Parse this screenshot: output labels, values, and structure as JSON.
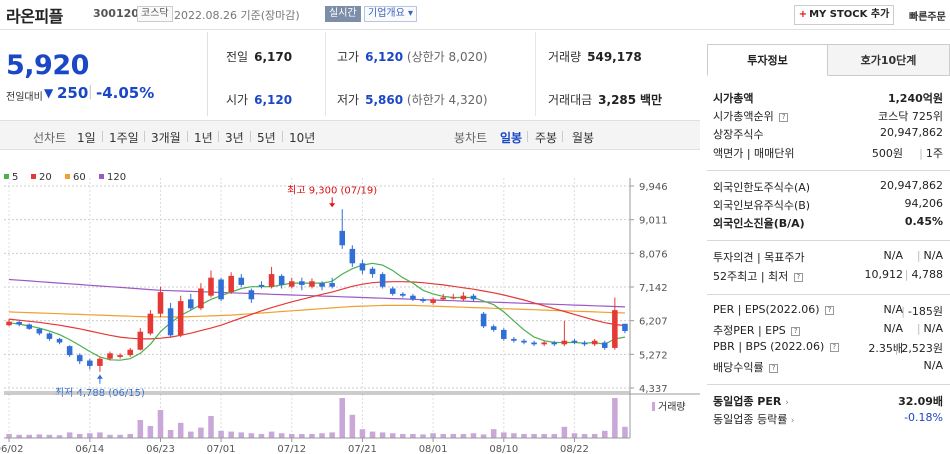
{
  "header": {
    "name": "라온피플",
    "code": "300120",
    "market": "코스닥",
    "date": "2022.08.26 기준(장마감)",
    "live": "실시간",
    "company_info": "기업개요",
    "mystock": "MY STOCK 추가",
    "quick_order": "빠른주문"
  },
  "price": {
    "current": "5,920",
    "diff_label": "전일대비",
    "diff_arrow": "▼",
    "diff": "250",
    "diff_pct": "-4.05%"
  },
  "stats": {
    "prev_label": "전일",
    "prev": "6,170",
    "high_label": "고가",
    "high": "6,120",
    "high_limit": "(상한가 8,020)",
    "volume_label": "거래량",
    "volume": "549,178",
    "open_label": "시가",
    "open": "6,120",
    "low_label": "저가",
    "low": "5,860",
    "low_limit": "(하한가 4,320)",
    "amount_label": "거래대금",
    "amount": "3,285",
    "amount_unit": "백만"
  },
  "toolbar": {
    "line_chart": "선차트",
    "periods": [
      "1일",
      "1주일",
      "3개월",
      "1년",
      "3년",
      "5년",
      "10년"
    ],
    "candle_chart": "봉차트",
    "candles": [
      "일봉",
      "주봉",
      "월봉"
    ]
  },
  "chart_data": {
    "type": "candlestick",
    "ma_legend": [
      {
        "name": "5",
        "color": "#4caf50"
      },
      {
        "name": "20",
        "color": "#e53935"
      },
      {
        "name": "60",
        "color": "#f0a030"
      },
      {
        "name": "120",
        "color": "#9b59c6"
      }
    ],
    "y_ticks": [
      "9,946",
      "9,011",
      "8,076",
      "7,142",
      "6,207",
      "5,272",
      "4,337"
    ],
    "y_tick_values": [
      9946,
      9011,
      8076,
      7142,
      6207,
      5272,
      4337
    ],
    "ylim": [
      4337,
      9946
    ],
    "x_labels": [
      "06/02",
      "06/14",
      "06/23",
      "07/01",
      "07/12",
      "07/21",
      "08/01",
      "08/10",
      "08/22"
    ],
    "x_label_index": [
      0,
      8,
      15,
      21,
      28,
      35,
      42,
      49,
      56
    ],
    "annot_high": "최고 9,300 (07/19)",
    "annot_high_value": 9300,
    "annot_high_index": 32,
    "annot_low": "최저 4,788 (06/15)",
    "annot_low_value": 4788,
    "annot_low_index": 9,
    "volume_label": "거래량",
    "candles": [
      {
        "o": 6080,
        "c": 6180,
        "h": 6250,
        "l": 6050
      },
      {
        "o": 6170,
        "c": 6100,
        "h": 6220,
        "l": 6050
      },
      {
        "o": 6100,
        "c": 5980,
        "h": 6130,
        "l": 5950
      },
      {
        "o": 5980,
        "c": 5850,
        "h": 6000,
        "l": 5800
      },
      {
        "o": 5850,
        "c": 5700,
        "h": 5880,
        "l": 5650
      },
      {
        "o": 5700,
        "c": 5600,
        "h": 5730,
        "l": 5550
      },
      {
        "o": 5500,
        "c": 5250,
        "h": 5520,
        "l": 5200
      },
      {
        "o": 5250,
        "c": 5080,
        "h": 5300,
        "l": 5000
      },
      {
        "o": 5100,
        "c": 4950,
        "h": 5150,
        "l": 4850
      },
      {
        "o": 4950,
        "c": 5150,
        "h": 5200,
        "l": 4788
      },
      {
        "o": 5150,
        "c": 5300,
        "h": 5350,
        "l": 5100
      },
      {
        "o": 5200,
        "c": 5250,
        "h": 5300,
        "l": 5150
      },
      {
        "o": 5250,
        "c": 5400,
        "h": 5450,
        "l": 5200
      },
      {
        "o": 5400,
        "c": 5900,
        "h": 6000,
        "l": 5380
      },
      {
        "o": 5850,
        "c": 6400,
        "h": 6500,
        "l": 5800
      },
      {
        "o": 6400,
        "c": 7000,
        "h": 7150,
        "l": 6300
      },
      {
        "o": 6550,
        "c": 5800,
        "h": 6700,
        "l": 5750
      },
      {
        "o": 5800,
        "c": 6750,
        "h": 6900,
        "l": 5750
      },
      {
        "o": 6800,
        "c": 6550,
        "h": 6950,
        "l": 6500
      },
      {
        "o": 6550,
        "c": 7100,
        "h": 7250,
        "l": 6500
      },
      {
        "o": 6900,
        "c": 7400,
        "h": 7600,
        "l": 6850
      },
      {
        "o": 7350,
        "c": 6800,
        "h": 7400,
        "l": 6750
      },
      {
        "o": 7000,
        "c": 7450,
        "h": 7550,
        "l": 6950
      },
      {
        "o": 7400,
        "c": 7200,
        "h": 7500,
        "l": 7150
      },
      {
        "o": 7050,
        "c": 6800,
        "h": 7100,
        "l": 6700
      },
      {
        "o": 7200,
        "c": 7150,
        "h": 7300,
        "l": 7100
      },
      {
        "o": 7150,
        "c": 7500,
        "h": 7700,
        "l": 7100
      },
      {
        "o": 7450,
        "c": 7200,
        "h": 7500,
        "l": 7100
      },
      {
        "o": 7150,
        "c": 7300,
        "h": 7400,
        "l": 7100
      },
      {
        "o": 7300,
        "c": 7200,
        "h": 7400,
        "l": 7050
      },
      {
        "o": 7150,
        "c": 7300,
        "h": 7380,
        "l": 7100
      },
      {
        "o": 7250,
        "c": 7150,
        "h": 7300,
        "l": 7050
      },
      {
        "o": 7250,
        "c": 7150,
        "h": 7400,
        "l": 7100
      },
      {
        "o": 8700,
        "c": 8300,
        "h": 9300,
        "l": 8200
      },
      {
        "o": 8200,
        "c": 7800,
        "h": 8300,
        "l": 7700
      },
      {
        "o": 7800,
        "c": 7600,
        "h": 7900,
        "l": 7500
      },
      {
        "o": 7650,
        "c": 7500,
        "h": 7700,
        "l": 7400
      },
      {
        "o": 7500,
        "c": 7150,
        "h": 7550,
        "l": 7100
      },
      {
        "o": 7100,
        "c": 6950,
        "h": 7150,
        "l": 6900
      },
      {
        "o": 6950,
        "c": 6900,
        "h": 7000,
        "l": 6850
      },
      {
        "o": 6900,
        "c": 6800,
        "h": 6950,
        "l": 6750
      },
      {
        "o": 6800,
        "c": 6750,
        "h": 6850,
        "l": 6700
      },
      {
        "o": 6700,
        "c": 6800,
        "h": 6850,
        "l": 6650
      },
      {
        "o": 6800,
        "c": 6850,
        "h": 6950,
        "l": 6750
      },
      {
        "o": 6850,
        "c": 6850,
        "h": 6950,
        "l": 6800
      },
      {
        "o": 6800,
        "c": 6900,
        "h": 7000,
        "l": 6750
      },
      {
        "o": 6900,
        "c": 6800,
        "h": 6950,
        "l": 6750
      },
      {
        "o": 6400,
        "c": 6050,
        "h": 6450,
        "l": 6000
      },
      {
        "o": 6050,
        "c": 5950,
        "h": 6100,
        "l": 5900
      },
      {
        "o": 5950,
        "c": 5700,
        "h": 6000,
        "l": 5650
      },
      {
        "o": 5700,
        "c": 5650,
        "h": 5750,
        "l": 5600
      },
      {
        "o": 5650,
        "c": 5600,
        "h": 5700,
        "l": 5550
      },
      {
        "o": 5600,
        "c": 5550,
        "h": 5650,
        "l": 5500
      },
      {
        "o": 5550,
        "c": 5600,
        "h": 5650,
        "l": 5500
      },
      {
        "o": 5600,
        "c": 5550,
        "h": 5650,
        "l": 5500
      },
      {
        "o": 5550,
        "c": 5650,
        "h": 6200,
        "l": 5500
      },
      {
        "o": 5650,
        "c": 5600,
        "h": 5700,
        "l": 5550
      },
      {
        "o": 5600,
        "c": 5550,
        "h": 5650,
        "l": 5500
      },
      {
        "o": 5550,
        "c": 5650,
        "h": 5700,
        "l": 5500
      },
      {
        "o": 5600,
        "c": 5450,
        "h": 5650,
        "l": 5400
      },
      {
        "o": 5450,
        "c": 6500,
        "h": 6850,
        "l": 5400
      },
      {
        "o": 6120,
        "c": 5920,
        "h": 6120,
        "l": 5860
      }
    ],
    "volumes": [
      10,
      8,
      8,
      9,
      8,
      7,
      14,
      10,
      12,
      14,
      8,
      8,
      10,
      45,
      30,
      70,
      20,
      38,
      16,
      26,
      55,
      18,
      16,
      14,
      12,
      10,
      16,
      12,
      10,
      10,
      10,
      12,
      14,
      100,
      58,
      22,
      16,
      14,
      12,
      10,
      10,
      9,
      12,
      10,
      10,
      10,
      12,
      9,
      22,
      14,
      12,
      10,
      10,
      10,
      10,
      28,
      12,
      10,
      10,
      18,
      100,
      28
    ],
    "ma5": [
      6150,
      6110,
      6060,
      6000,
      5920,
      5820,
      5680,
      5520,
      5350,
      5200,
      5120,
      5110,
      5150,
      5300,
      5550,
      5900,
      6150,
      6350,
      6500,
      6650,
      6800,
      6900,
      7000,
      7100,
      7150,
      7150,
      7150,
      7200,
      7250,
      7250,
      7250,
      7250,
      7300,
      7500,
      7650,
      7750,
      7800,
      7750,
      7600,
      7400,
      7250,
      7050,
      6950,
      6880,
      6850,
      6850,
      6850,
      6750,
      6650,
      6450,
      6200,
      5950,
      5750,
      5650,
      5600,
      5600,
      5600,
      5580,
      5600,
      5550,
      5700,
      5750
    ],
    "ma20": [
      6250,
      6220,
      6190,
      6160,
      6120,
      6080,
      6030,
      5980,
      5920,
      5860,
      5800,
      5750,
      5720,
      5700,
      5700,
      5720,
      5750,
      5800,
      5860,
      5930,
      6000,
      6080,
      6180,
      6280,
      6380,
      6480,
      6570,
      6650,
      6730,
      6800,
      6870,
      6940,
      7000,
      7080,
      7160,
      7220,
      7260,
      7280,
      7290,
      7290,
      7280,
      7260,
      7230,
      7200,
      7160,
      7120,
      7080,
      7030,
      6980,
      6920,
      6850,
      6780,
      6700,
      6620,
      6540,
      6460,
      6380,
      6300,
      6220,
      6150,
      6100,
      6070
    ],
    "ma60": [
      6450,
      6440,
      6430,
      6420,
      6410,
      6400,
      6390,
      6380,
      6370,
      6360,
      6350,
      6340,
      6330,
      6320,
      6310,
      6310,
      6310,
      6310,
      6320,
      6330,
      6340,
      6350,
      6360,
      6380,
      6400,
      6420,
      6440,
      6460,
      6480,
      6500,
      6520,
      6540,
      6560,
      6580,
      6600,
      6610,
      6620,
      6630,
      6630,
      6630,
      6630,
      6620,
      6610,
      6600,
      6590,
      6580,
      6570,
      6560,
      6550,
      6540,
      6530,
      6520,
      6510,
      6500,
      6490,
      6480,
      6470,
      6460,
      6450,
      6440,
      6430,
      6420
    ],
    "ma120": [
      7350,
      7330,
      7310,
      7290,
      7270,
      7250,
      7230,
      7210,
      7190,
      7170,
      7150,
      7130,
      7110,
      7090,
      7070,
      7050,
      7040,
      7030,
      7020,
      7010,
      7000,
      6990,
      6980,
      6970,
      6960,
      6950,
      6940,
      6930,
      6920,
      6910,
      6900,
      6890,
      6880,
      6870,
      6860,
      6850,
      6840,
      6830,
      6820,
      6810,
      6800,
      6790,
      6780,
      6770,
      6760,
      6750,
      6740,
      6730,
      6720,
      6710,
      6700,
      6690,
      6680,
      6670,
      6660,
      6650,
      6640,
      6630,
      6620,
      6610,
      6600,
      6590
    ]
  },
  "panel": {
    "tab1": "투자정보",
    "tab2": "호가10단계",
    "rows": {
      "market_cap_label": "시가총액",
      "market_cap": "1,240억원",
      "market_rank_label": "시가총액순위",
      "market_rank": "코스닥 725위",
      "shares_label": "상장주식수",
      "shares": "20,947,862",
      "face_label": "액면가 | 매매단위",
      "face": "500원",
      "unit": "1주",
      "foreign_limit_label": "외국인한도주식수(A)",
      "foreign_limit": "20,947,862",
      "foreign_hold_label": "외국인보유주식수(B)",
      "foreign_hold": "94,206",
      "foreign_ratio_label": "외국인소진율(B/A)",
      "foreign_ratio": "0.45%",
      "opinion_label": "투자의견 | 목표주가",
      "opinion": "N/A",
      "target": "N/A",
      "range52_label": "52주최고 | 최저",
      "high52": "10,912",
      "low52": "4,788",
      "per_label": "PER | EPS(2022.06)",
      "per": "N/A",
      "eps": "-185원",
      "est_per_label": "추정PER | EPS",
      "est_per": "N/A",
      "est_eps": "N/A",
      "pbr_label": "PBR | BPS (2022.06)",
      "pbr": "2.35배",
      "bps": "2,523원",
      "div_label": "배당수익률",
      "div": "N/A",
      "sector_per_label": "동일업종 PER",
      "sector_per": "32.09배",
      "sector_rate_label": "동일업종 등락률",
      "sector_rate": "-0.18%"
    }
  }
}
